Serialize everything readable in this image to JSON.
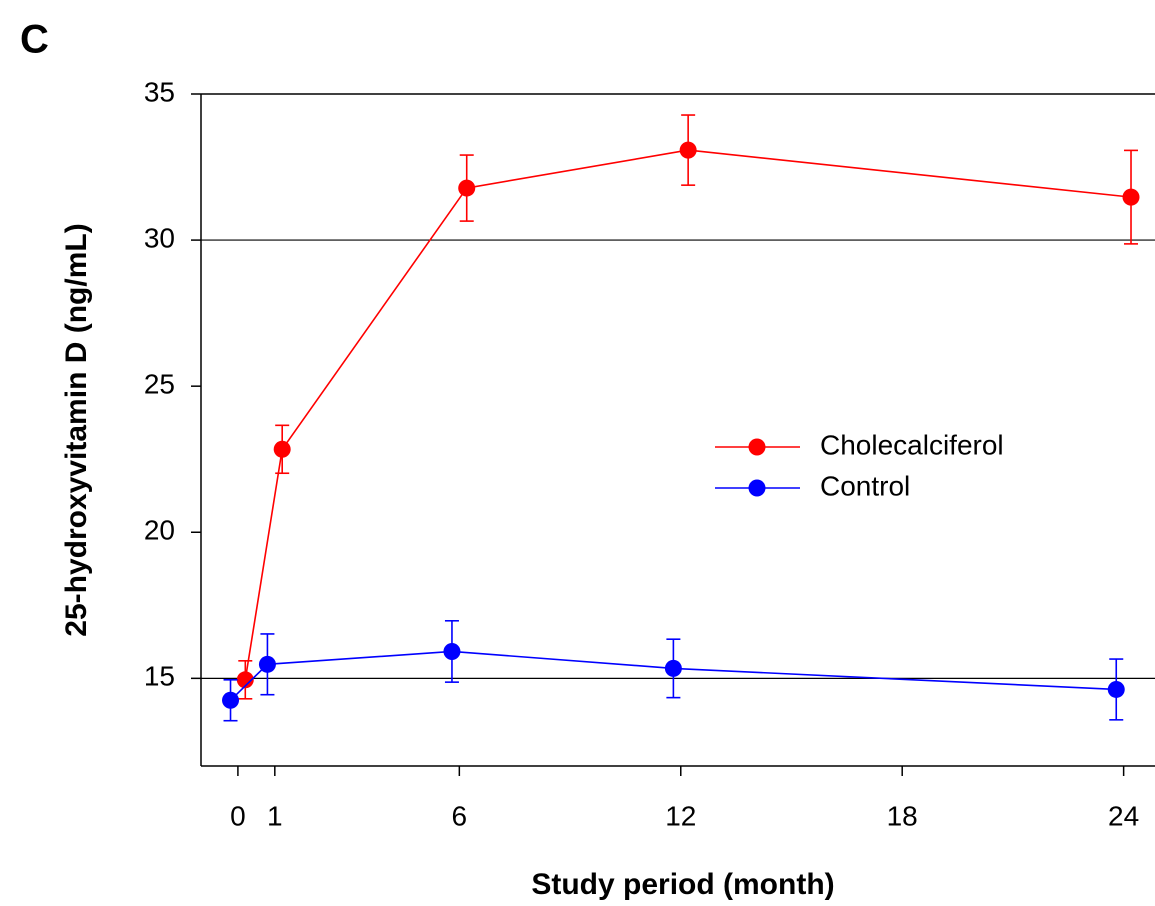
{
  "panel_label": "C",
  "chart_data": {
    "type": "line",
    "x_label": "Study period (month)",
    "y_label": "25-hydroxyvitamin D (ng/mL)",
    "xlim": [
      -1,
      24.85
    ],
    "xticks": [
      0,
      1,
      6,
      12,
      18,
      24
    ],
    "ylim": [
      12,
      35
    ],
    "yticks": [
      15,
      20,
      25,
      30,
      35
    ],
    "reference_lines": [
      15,
      30
    ],
    "legend": "right",
    "series": [
      {
        "name": "Cholecalciferol",
        "color": "#ff0000",
        "x": [
          0.2,
          1.2,
          6.2,
          12.2,
          24.2
        ],
        "values": [
          14.95,
          22.84,
          31.78,
          33.08,
          31.47
        ],
        "errors": [
          0.65,
          0.82,
          1.13,
          1.2,
          1.6
        ]
      },
      {
        "name": "Control",
        "color": "#0000ff",
        "x": [
          -0.2,
          0.8,
          5.8,
          11.8,
          23.8
        ],
        "values": [
          14.25,
          15.48,
          15.92,
          15.34,
          14.62
        ],
        "errors": [
          0.7,
          1.04,
          1.05,
          1.0,
          1.04
        ]
      }
    ]
  }
}
